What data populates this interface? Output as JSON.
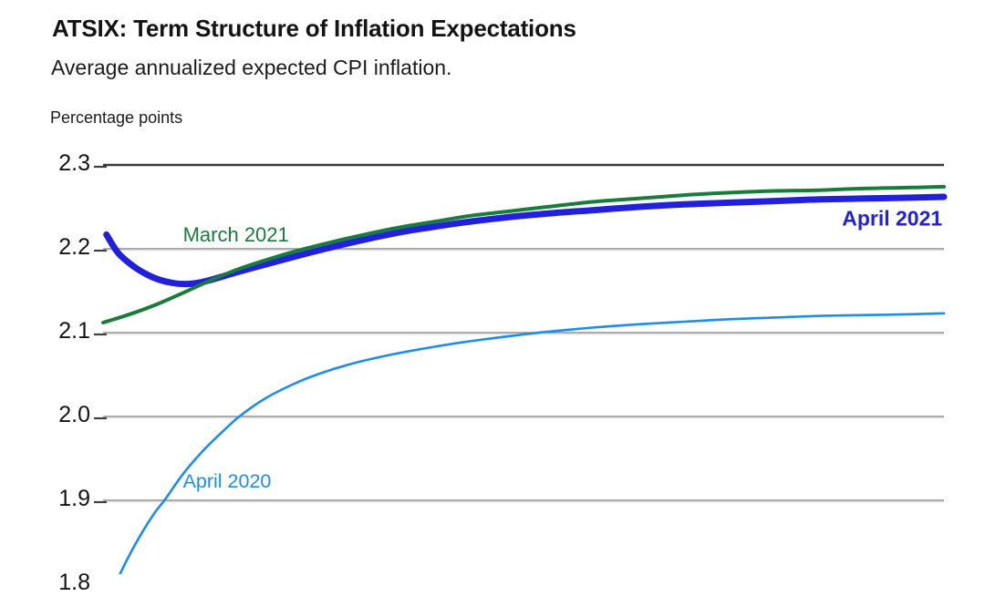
{
  "chart_data": {
    "type": "line",
    "title": "ATSIX: Term Structure of Inflation Expectations",
    "subtitle": "Average annualized expected CPI inflation.",
    "unit_label": "Percentage points",
    "grid": true,
    "legend_position": "inline-labels",
    "y_axis": {
      "visible_range": [
        1.81,
        2.35
      ],
      "ticks": [
        {
          "label": "2.3",
          "value": 2.3
        },
        {
          "label": "2.2",
          "value": 2.2
        },
        {
          "label": "2.1",
          "value": 2.1
        },
        {
          "label": "2.0",
          "value": 2.0
        },
        {
          "label": "1.9",
          "value": 1.9
        },
        {
          "label": "1.8",
          "value": 1.8
        }
      ]
    },
    "series": [
      {
        "name": "April 2020",
        "color": "#1b8cf2",
        "line_width": 2.6,
        "label": {
          "t": 0.095,
          "v": 1.922,
          "align": "left",
          "bold": false,
          "font_size": 21.5
        },
        "points": [
          [
            0.0,
            1.77
          ],
          [
            0.013,
            1.797
          ],
          [
            0.029,
            1.83
          ],
          [
            0.046,
            1.861
          ],
          [
            0.062,
            1.886
          ],
          [
            0.073,
            1.9
          ],
          [
            0.094,
            1.93
          ],
          [
            0.116,
            1.956
          ],
          [
            0.138,
            1.978
          ],
          [
            0.162,
            2.0
          ],
          [
            0.192,
            2.021
          ],
          [
            0.225,
            2.038
          ],
          [
            0.257,
            2.051
          ],
          [
            0.3,
            2.064
          ],
          [
            0.344,
            2.074
          ],
          [
            0.387,
            2.082
          ],
          [
            0.431,
            2.089
          ],
          [
            0.485,
            2.096
          ],
          [
            0.528,
            2.101
          ],
          [
            0.582,
            2.106
          ],
          [
            0.637,
            2.11
          ],
          [
            0.691,
            2.113
          ],
          [
            0.745,
            2.116
          ],
          [
            0.799,
            2.118
          ],
          [
            0.854,
            2.12
          ],
          [
            0.908,
            2.121
          ],
          [
            0.962,
            2.122
          ],
          [
            1.0,
            2.123
          ]
        ]
      },
      {
        "name": "April 2021",
        "color": "#2121dd",
        "line_width": 7,
        "label": {
          "t": 0.998,
          "v": 2.236,
          "align": "right",
          "bold": true,
          "font_size": 23
        },
        "points": [
          [
            0.004,
            2.217
          ],
          [
            0.018,
            2.195
          ],
          [
            0.035,
            2.18
          ],
          [
            0.051,
            2.17
          ],
          [
            0.067,
            2.163
          ],
          [
            0.084,
            2.159
          ],
          [
            0.1,
            2.158
          ],
          [
            0.116,
            2.16
          ],
          [
            0.132,
            2.164
          ],
          [
            0.159,
            2.172
          ],
          [
            0.192,
            2.181
          ],
          [
            0.225,
            2.19
          ],
          [
            0.268,
            2.201
          ],
          [
            0.311,
            2.211
          ],
          [
            0.355,
            2.22
          ],
          [
            0.398,
            2.227
          ],
          [
            0.441,
            2.233
          ],
          [
            0.485,
            2.238
          ],
          [
            0.528,
            2.242
          ],
          [
            0.582,
            2.246
          ],
          [
            0.637,
            2.25
          ],
          [
            0.691,
            2.253
          ],
          [
            0.745,
            2.255
          ],
          [
            0.799,
            2.257
          ],
          [
            0.854,
            2.259
          ],
          [
            0.908,
            2.26
          ],
          [
            0.962,
            2.261
          ],
          [
            1.0,
            2.262
          ]
        ]
      },
      {
        "name": "March 2021",
        "color": "#187d3a",
        "line_width": 4,
        "label": {
          "t": 0.095,
          "v": 2.216,
          "align": "left",
          "bold": false,
          "font_size": 22
        },
        "points": [
          [
            0.0,
            2.112
          ],
          [
            0.029,
            2.121
          ],
          [
            0.062,
            2.133
          ],
          [
            0.094,
            2.147
          ],
          [
            0.127,
            2.162
          ],
          [
            0.159,
            2.175
          ],
          [
            0.192,
            2.186
          ],
          [
            0.225,
            2.196
          ],
          [
            0.268,
            2.207
          ],
          [
            0.311,
            2.217
          ],
          [
            0.355,
            2.226
          ],
          [
            0.398,
            2.233
          ],
          [
            0.441,
            2.24
          ],
          [
            0.485,
            2.245
          ],
          [
            0.528,
            2.25
          ],
          [
            0.582,
            2.256
          ],
          [
            0.637,
            2.26
          ],
          [
            0.691,
            2.264
          ],
          [
            0.745,
            2.267
          ],
          [
            0.799,
            2.269
          ],
          [
            0.854,
            2.27
          ],
          [
            0.908,
            2.272
          ],
          [
            0.962,
            2.273
          ],
          [
            1.0,
            2.274
          ]
        ]
      }
    ]
  }
}
